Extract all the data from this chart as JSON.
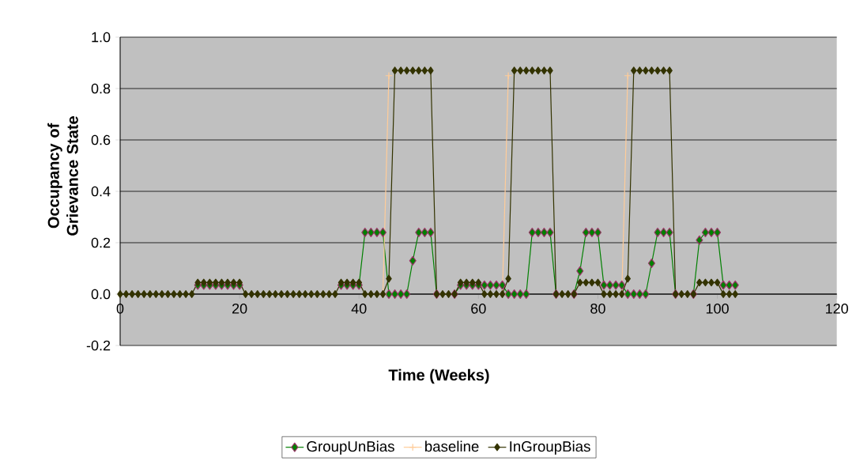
{
  "chart_data": {
    "type": "line",
    "xlabel": "Time (Weeks)",
    "ylabel": "Occupancy of Grievance State",
    "x": [
      0,
      1,
      2,
      3,
      4,
      5,
      6,
      7,
      8,
      9,
      10,
      11,
      12,
      13,
      14,
      15,
      16,
      17,
      18,
      19,
      20,
      21,
      22,
      23,
      24,
      25,
      26,
      27,
      28,
      29,
      30,
      31,
      32,
      33,
      34,
      35,
      36,
      37,
      38,
      39,
      40,
      41,
      42,
      43,
      44,
      45,
      46,
      47,
      48,
      49,
      50,
      51,
      52,
      53,
      54,
      55,
      56,
      57,
      58,
      59,
      60,
      61,
      62,
      63,
      64,
      65,
      66,
      67,
      68,
      69,
      70,
      71,
      72,
      73,
      74,
      75,
      76,
      77,
      78,
      79,
      80,
      81,
      82,
      83,
      84,
      85,
      86,
      87,
      88,
      89,
      90,
      91,
      92,
      93,
      94,
      95,
      96,
      97,
      98,
      99,
      100,
      101,
      102,
      103
    ],
    "series": [
      {
        "name": "GroupUnBias",
        "color": "#008000",
        "marker": "diamond",
        "values": [
          null,
          null,
          null,
          null,
          null,
          null,
          null,
          null,
          null,
          null,
          null,
          null,
          null,
          0.035,
          0.035,
          0.035,
          0.035,
          0.035,
          0.035,
          0.035,
          0.035,
          null,
          null,
          null,
          null,
          null,
          null,
          null,
          null,
          null,
          null,
          null,
          null,
          null,
          null,
          null,
          null,
          0.035,
          0.035,
          0.035,
          0.035,
          0.24,
          0.24,
          0.24,
          0.24,
          0,
          0,
          0,
          0,
          0.13,
          0.24,
          0.24,
          0.24,
          0,
          null,
          null,
          0,
          0.035,
          0.035,
          0.035,
          0.035,
          0.035,
          0.035,
          0.035,
          0.035,
          0,
          0,
          0,
          0,
          0.24,
          0.24,
          0.24,
          0.24,
          0,
          null,
          null,
          0,
          0.09,
          0.24,
          0.24,
          0.24,
          0.035,
          0.035,
          0.035,
          0.035,
          0,
          0,
          0,
          0,
          0.12,
          0.24,
          0.24,
          0.24,
          0,
          null,
          null,
          0,
          0.21,
          0.24,
          0.24,
          0.24,
          0.035,
          0.035,
          0.035
        ]
      },
      {
        "name": "baseline",
        "color": "#ffcc99",
        "marker": "cross",
        "values": [
          null,
          null,
          null,
          null,
          null,
          null,
          null,
          null,
          null,
          null,
          null,
          null,
          null,
          null,
          null,
          null,
          null,
          null,
          null,
          null,
          null,
          null,
          null,
          null,
          null,
          null,
          null,
          null,
          null,
          null,
          null,
          null,
          null,
          null,
          null,
          null,
          null,
          null,
          null,
          null,
          null,
          null,
          null,
          null,
          0,
          0.85,
          null,
          null,
          null,
          null,
          null,
          null,
          null,
          null,
          null,
          null,
          null,
          null,
          null,
          null,
          null,
          null,
          null,
          null,
          0,
          0.85,
          null,
          null,
          null,
          null,
          null,
          null,
          null,
          null,
          null,
          null,
          null,
          null,
          null,
          null,
          null,
          null,
          null,
          null,
          0,
          0.85,
          null,
          null,
          null,
          null,
          null,
          null,
          null,
          null,
          null,
          null,
          null,
          null,
          null,
          null,
          null,
          null,
          null,
          null
        ]
      },
      {
        "name": "InGroupBias",
        "color": "#333300",
        "marker": "diamond",
        "values": [
          0,
          0,
          0,
          0,
          0,
          0,
          0,
          0,
          0,
          0,
          0,
          0,
          0,
          0.045,
          0.045,
          0.045,
          0.045,
          0.045,
          0.045,
          0.045,
          0.045,
          0,
          0,
          0,
          0,
          0,
          0,
          0,
          0,
          0,
          0,
          0,
          0,
          0,
          0,
          0,
          0,
          0.045,
          0.045,
          0.045,
          0.045,
          0,
          0,
          0,
          0,
          0.06,
          0.87,
          0.87,
          0.87,
          0.87,
          0.87,
          0.87,
          0.87,
          0,
          0,
          0,
          0,
          0.045,
          0.045,
          0.045,
          0.045,
          0,
          0,
          0,
          0,
          0.06,
          0.87,
          0.87,
          0.87,
          0.87,
          0.87,
          0.87,
          0.87,
          0,
          0,
          0,
          0,
          0.045,
          0.045,
          0.045,
          0.045,
          0,
          0,
          0,
          0,
          0.06,
          0.87,
          0.87,
          0.87,
          0.87,
          0.87,
          0.87,
          0.87,
          0,
          0,
          0,
          0,
          0.045,
          0.045,
          0.045,
          0.045,
          0,
          0,
          0
        ]
      }
    ],
    "xlim": [
      0,
      120
    ],
    "xticks": [
      0,
      20,
      40,
      60,
      80,
      100,
      120
    ],
    "ylim": [
      -0.2,
      1.0
    ],
    "yticks": [
      {
        "value": -0.2,
        "label": "-0.2"
      },
      {
        "value": 0,
        "label": "0.0"
      },
      {
        "value": 0.2,
        "label": "0.2"
      },
      {
        "value": 0.4,
        "label": "0.4"
      },
      {
        "value": 0.6,
        "label": "0.6"
      },
      {
        "value": 0.8,
        "label": "0.8"
      },
      {
        "value": 1.0,
        "label": "1.0"
      }
    ],
    "grid": "y",
    "legend": "bottom",
    "line_style": "solid"
  }
}
